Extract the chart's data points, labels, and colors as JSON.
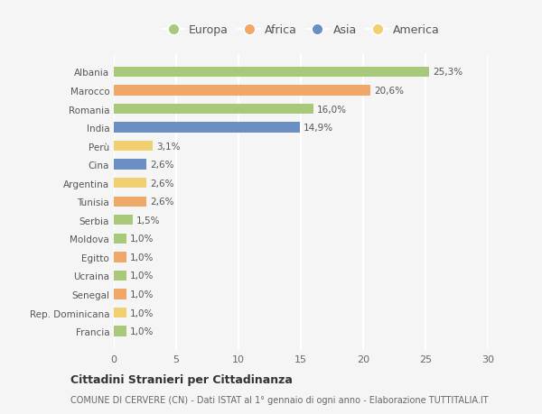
{
  "categories": [
    "Albania",
    "Marocco",
    "Romania",
    "India",
    "Perù",
    "Cina",
    "Argentina",
    "Tunisia",
    "Serbia",
    "Moldova",
    "Egitto",
    "Ucraina",
    "Senegal",
    "Rep. Dominicana",
    "Francia"
  ],
  "values": [
    25.3,
    20.6,
    16.0,
    14.9,
    3.1,
    2.6,
    2.6,
    2.6,
    1.5,
    1.0,
    1.0,
    1.0,
    1.0,
    1.0,
    1.0
  ],
  "labels": [
    "25,3%",
    "20,6%",
    "16,0%",
    "14,9%",
    "3,1%",
    "2,6%",
    "2,6%",
    "2,6%",
    "1,5%",
    "1,0%",
    "1,0%",
    "1,0%",
    "1,0%",
    "1,0%",
    "1,0%"
  ],
  "continents": [
    "Europa",
    "Africa",
    "Europa",
    "Asia",
    "America",
    "Asia",
    "America",
    "Africa",
    "Europa",
    "Europa",
    "Africa",
    "Europa",
    "Africa",
    "America",
    "Europa"
  ],
  "colors": {
    "Europa": "#a8c87a",
    "Africa": "#f0a868",
    "Asia": "#6b8fc4",
    "America": "#f0d070"
  },
  "legend_order": [
    "Europa",
    "Africa",
    "Asia",
    "America"
  ],
  "bg_color": "#f5f5f5",
  "grid_color": "#ffffff",
  "title": "Cittadini Stranieri per Cittadinanza",
  "subtitle": "COMUNE DI CERVERE (CN) - Dati ISTAT al 1° gennaio di ogni anno - Elaborazione TUTTITALIA.IT",
  "xlim": [
    0,
    30
  ],
  "xticks": [
    0,
    5,
    10,
    15,
    20,
    25,
    30
  ]
}
